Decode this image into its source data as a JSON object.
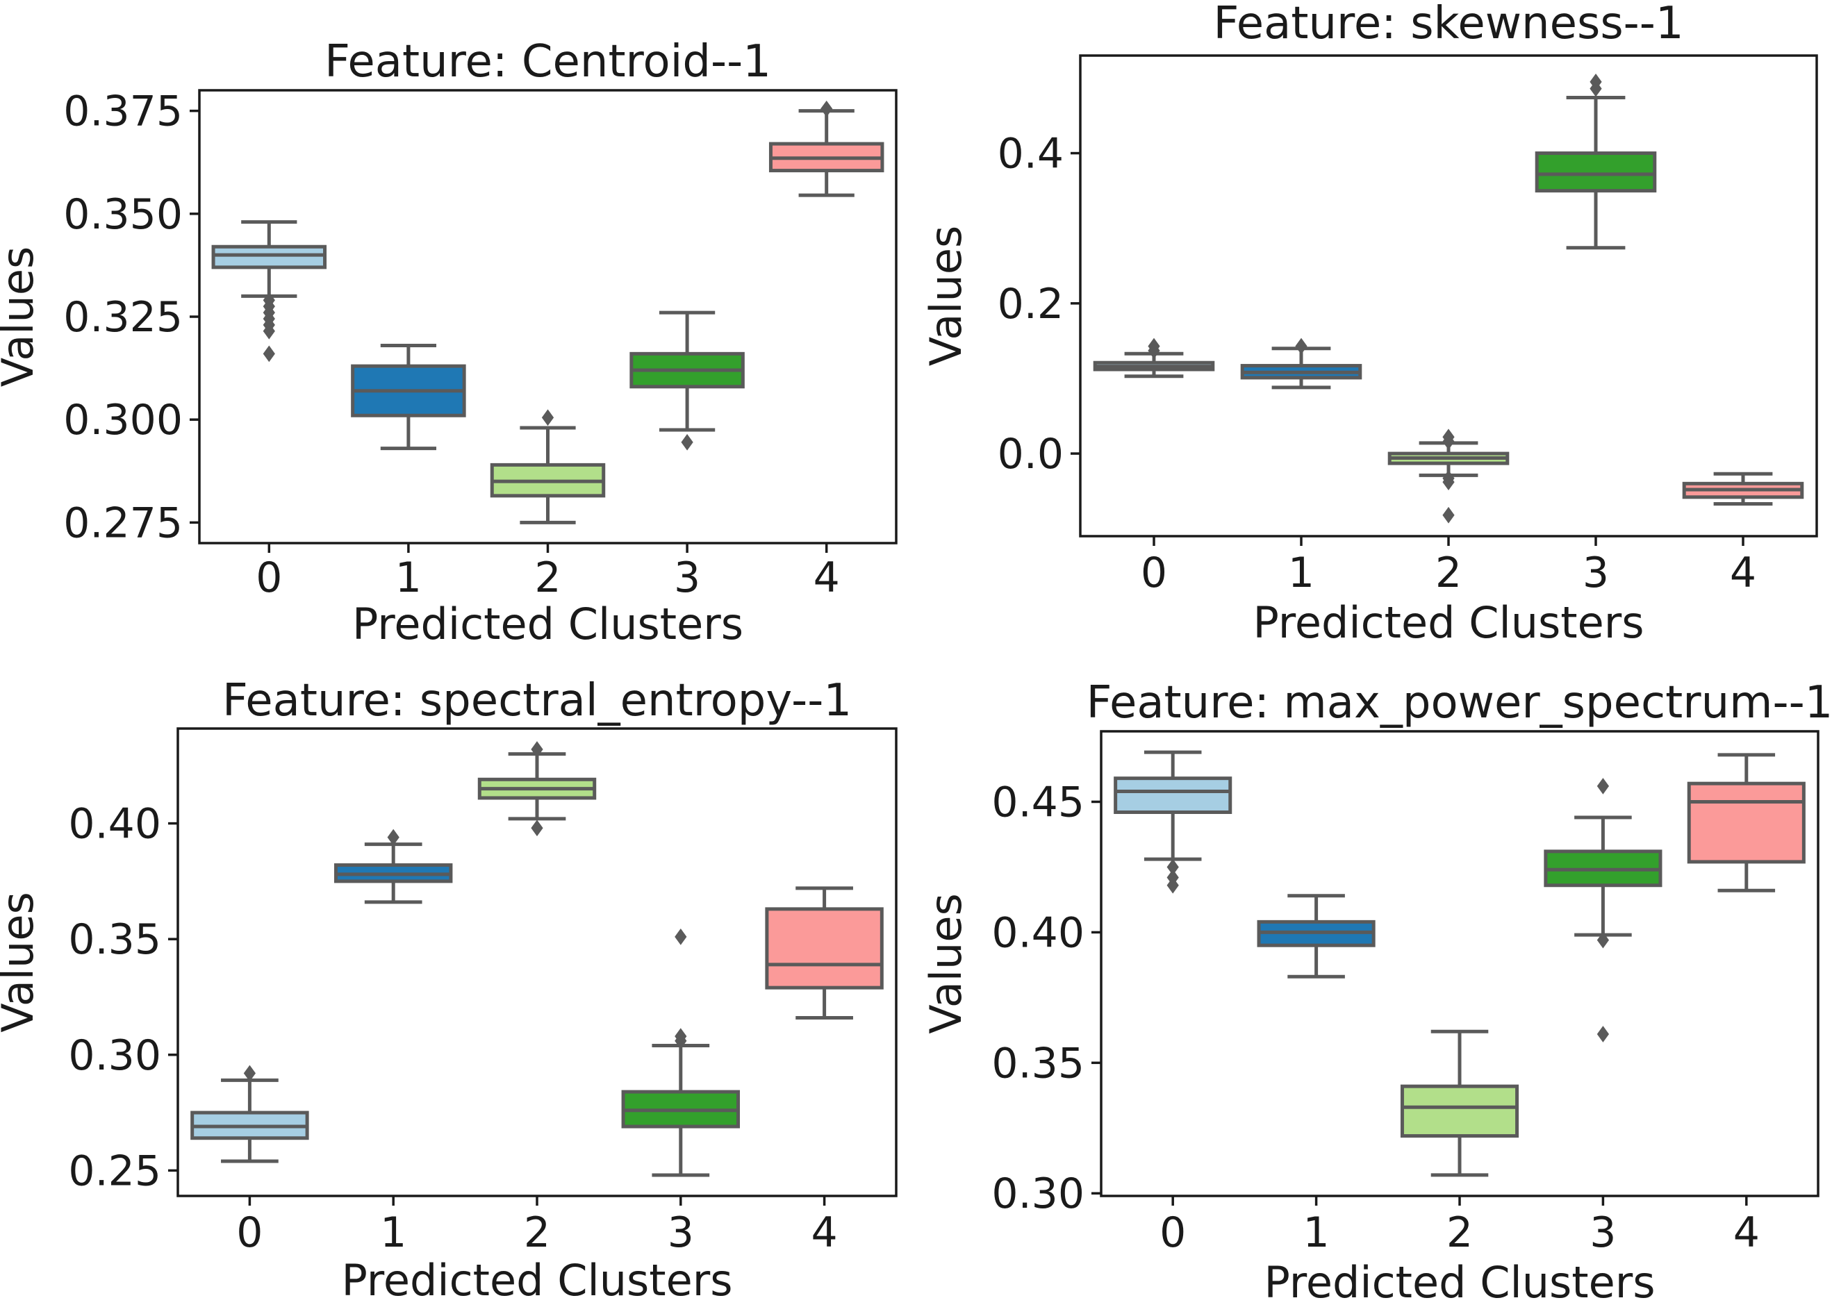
{
  "chart_data": [
    {
      "type": "box",
      "title": "Feature: Centroid--1",
      "xlabel": "Predicted Clusters",
      "ylabel": "Values",
      "categories": [
        "0",
        "1",
        "2",
        "3",
        "4"
      ],
      "ylim": [
        0.27,
        0.38
      ],
      "yticks": [
        0.275,
        0.3,
        0.325,
        0.35,
        0.375
      ],
      "ytick_labels": [
        "0.275",
        "0.300",
        "0.325",
        "0.350",
        "0.375"
      ],
      "colors": [
        "#a6cee3",
        "#1f78b4",
        "#b2df8a",
        "#33a02c",
        "#fb9a99"
      ],
      "boxes": [
        {
          "category": "0",
          "whislo": 0.33,
          "q1": 0.337,
          "med": 0.34,
          "q3": 0.342,
          "whishi": 0.348,
          "fliers": [
            0.329,
            0.3275,
            0.326,
            0.3245,
            0.323,
            0.3215,
            0.316
          ]
        },
        {
          "category": "1",
          "whislo": 0.293,
          "q1": 0.301,
          "med": 0.307,
          "q3": 0.313,
          "whishi": 0.318,
          "fliers": []
        },
        {
          "category": "2",
          "whislo": 0.275,
          "q1": 0.2815,
          "med": 0.285,
          "q3": 0.289,
          "whishi": 0.298,
          "fliers": [
            0.3005
          ]
        },
        {
          "category": "3",
          "whislo": 0.2975,
          "q1": 0.308,
          "med": 0.312,
          "q3": 0.316,
          "whishi": 0.326,
          "fliers": [
            0.2945
          ]
        },
        {
          "category": "4",
          "whislo": 0.3545,
          "q1": 0.3605,
          "med": 0.3635,
          "q3": 0.367,
          "whishi": 0.375,
          "fliers": [
            0.3755
          ]
        }
      ]
    },
    {
      "type": "box",
      "title": "Feature: skewness--1",
      "xlabel": "Predicted Clusters",
      "ylabel": "Values",
      "categories": [
        "0",
        "1",
        "2",
        "3",
        "4"
      ],
      "ylim": [
        -0.11,
        0.53
      ],
      "yticks": [
        0.0,
        0.2,
        0.4
      ],
      "ytick_labels": [
        "0.0",
        "0.2",
        "0.4"
      ],
      "colors": [
        "#a6cee3",
        "#1f78b4",
        "#b2df8a",
        "#33a02c",
        "#fb9a99"
      ],
      "boxes": [
        {
          "category": "0",
          "whislo": 0.103,
          "q1": 0.112,
          "med": 0.116,
          "q3": 0.121,
          "whishi": 0.133,
          "fliers": [
            0.143,
            0.137
          ]
        },
        {
          "category": "1",
          "whislo": 0.088,
          "q1": 0.101,
          "med": 0.108,
          "q3": 0.117,
          "whishi": 0.14,
          "fliers": [
            0.143
          ]
        },
        {
          "category": "2",
          "whislo": -0.029,
          "q1": -0.013,
          "med": -0.006,
          "q3": 0.0,
          "whishi": 0.014,
          "fliers": [
            0.022,
            0.016,
            -0.033,
            -0.038,
            -0.082
          ]
        },
        {
          "category": "3",
          "whislo": 0.274,
          "q1": 0.35,
          "med": 0.372,
          "q3": 0.4,
          "whishi": 0.474,
          "fliers": [
            0.495,
            0.486
          ]
        },
        {
          "category": "4",
          "whislo": -0.067,
          "q1": -0.058,
          "med": -0.048,
          "q3": -0.04,
          "whishi": -0.027,
          "fliers": []
        }
      ]
    },
    {
      "type": "box",
      "title": "Feature: spectral_entropy--1",
      "xlabel": "Predicted Clusters",
      "ylabel": "Values",
      "categories": [
        "0",
        "1",
        "2",
        "3",
        "4"
      ],
      "ylim": [
        0.239,
        0.441
      ],
      "yticks": [
        0.25,
        0.3,
        0.35,
        0.4
      ],
      "ytick_labels": [
        "0.25",
        "0.30",
        "0.35",
        "0.40"
      ],
      "colors": [
        "#a6cee3",
        "#1f78b4",
        "#b2df8a",
        "#33a02c",
        "#fb9a99"
      ],
      "boxes": [
        {
          "category": "0",
          "whislo": 0.254,
          "q1": 0.264,
          "med": 0.269,
          "q3": 0.275,
          "whishi": 0.289,
          "fliers": [
            0.292
          ]
        },
        {
          "category": "1",
          "whislo": 0.366,
          "q1": 0.375,
          "med": 0.378,
          "q3": 0.382,
          "whishi": 0.391,
          "fliers": [
            0.394
          ]
        },
        {
          "category": "2",
          "whislo": 0.402,
          "q1": 0.411,
          "med": 0.415,
          "q3": 0.419,
          "whishi": 0.43,
          "fliers": [
            0.432,
            0.398
          ]
        },
        {
          "category": "3",
          "whislo": 0.248,
          "q1": 0.269,
          "med": 0.276,
          "q3": 0.284,
          "whishi": 0.304,
          "fliers": [
            0.351,
            0.308,
            0.306
          ]
        },
        {
          "category": "4",
          "whislo": 0.316,
          "q1": 0.329,
          "med": 0.339,
          "q3": 0.363,
          "whishi": 0.372,
          "fliers": []
        }
      ]
    },
    {
      "type": "box",
      "title": "Feature: max_power_spectrum--1",
      "xlabel": "Predicted Clusters",
      "ylabel": "Values",
      "categories": [
        "0",
        "1",
        "2",
        "3",
        "4"
      ],
      "ylim": [
        0.299,
        0.477
      ],
      "yticks": [
        0.3,
        0.35,
        0.4,
        0.45
      ],
      "ytick_labels": [
        "0.30",
        "0.35",
        "0.40",
        "0.45"
      ],
      "colors": [
        "#a6cee3",
        "#1f78b4",
        "#b2df8a",
        "#33a02c",
        "#fb9a99"
      ],
      "boxes": [
        {
          "category": "0",
          "whislo": 0.428,
          "q1": 0.446,
          "med": 0.454,
          "q3": 0.459,
          "whishi": 0.469,
          "fliers": [
            0.425,
            0.421,
            0.418
          ]
        },
        {
          "category": "1",
          "whislo": 0.383,
          "q1": 0.395,
          "med": 0.4,
          "q3": 0.404,
          "whishi": 0.414,
          "fliers": []
        },
        {
          "category": "2",
          "whislo": 0.307,
          "q1": 0.322,
          "med": 0.333,
          "q3": 0.341,
          "whishi": 0.362,
          "fliers": []
        },
        {
          "category": "3",
          "whislo": 0.399,
          "q1": 0.418,
          "med": 0.424,
          "q3": 0.431,
          "whishi": 0.444,
          "fliers": [
            0.456,
            0.397,
            0.361
          ]
        },
        {
          "category": "4",
          "whislo": 0.416,
          "q1": 0.427,
          "med": 0.45,
          "q3": 0.457,
          "whishi": 0.468,
          "fliers": []
        }
      ]
    }
  ]
}
